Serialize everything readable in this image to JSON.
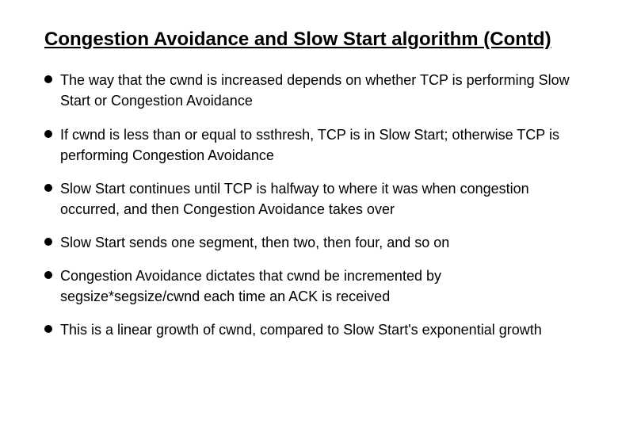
{
  "title": "Congestion Avoidance and Slow Start algorithm (Contd)",
  "bullets": [
    "The way that the cwnd is increased depends on whether TCP is performing Slow Start or Congestion Avoidance",
    "If cwnd is less than or equal to ssthresh, TCP is in Slow Start; otherwise TCP is performing Congestion Avoidance",
    "Slow Start continues until TCP is halfway to where it was when congestion occurred, and then Congestion Avoidance takes over",
    "Slow Start sends one segment, then two, then four, and so on",
    "Congestion Avoidance dictates that cwnd be incremented by segsize*segsize/cwnd each time an ACK is received",
    "This is a linear growth of cwnd, compared to Slow Start's exponential growth"
  ],
  "colors": {
    "background": "#ffffff",
    "text": "#000000",
    "bullet": "#000000"
  },
  "typography": {
    "title_fontsize": 24,
    "title_weight": "bold",
    "title_underline": true,
    "body_fontsize": 18,
    "font_family": "Arial"
  }
}
